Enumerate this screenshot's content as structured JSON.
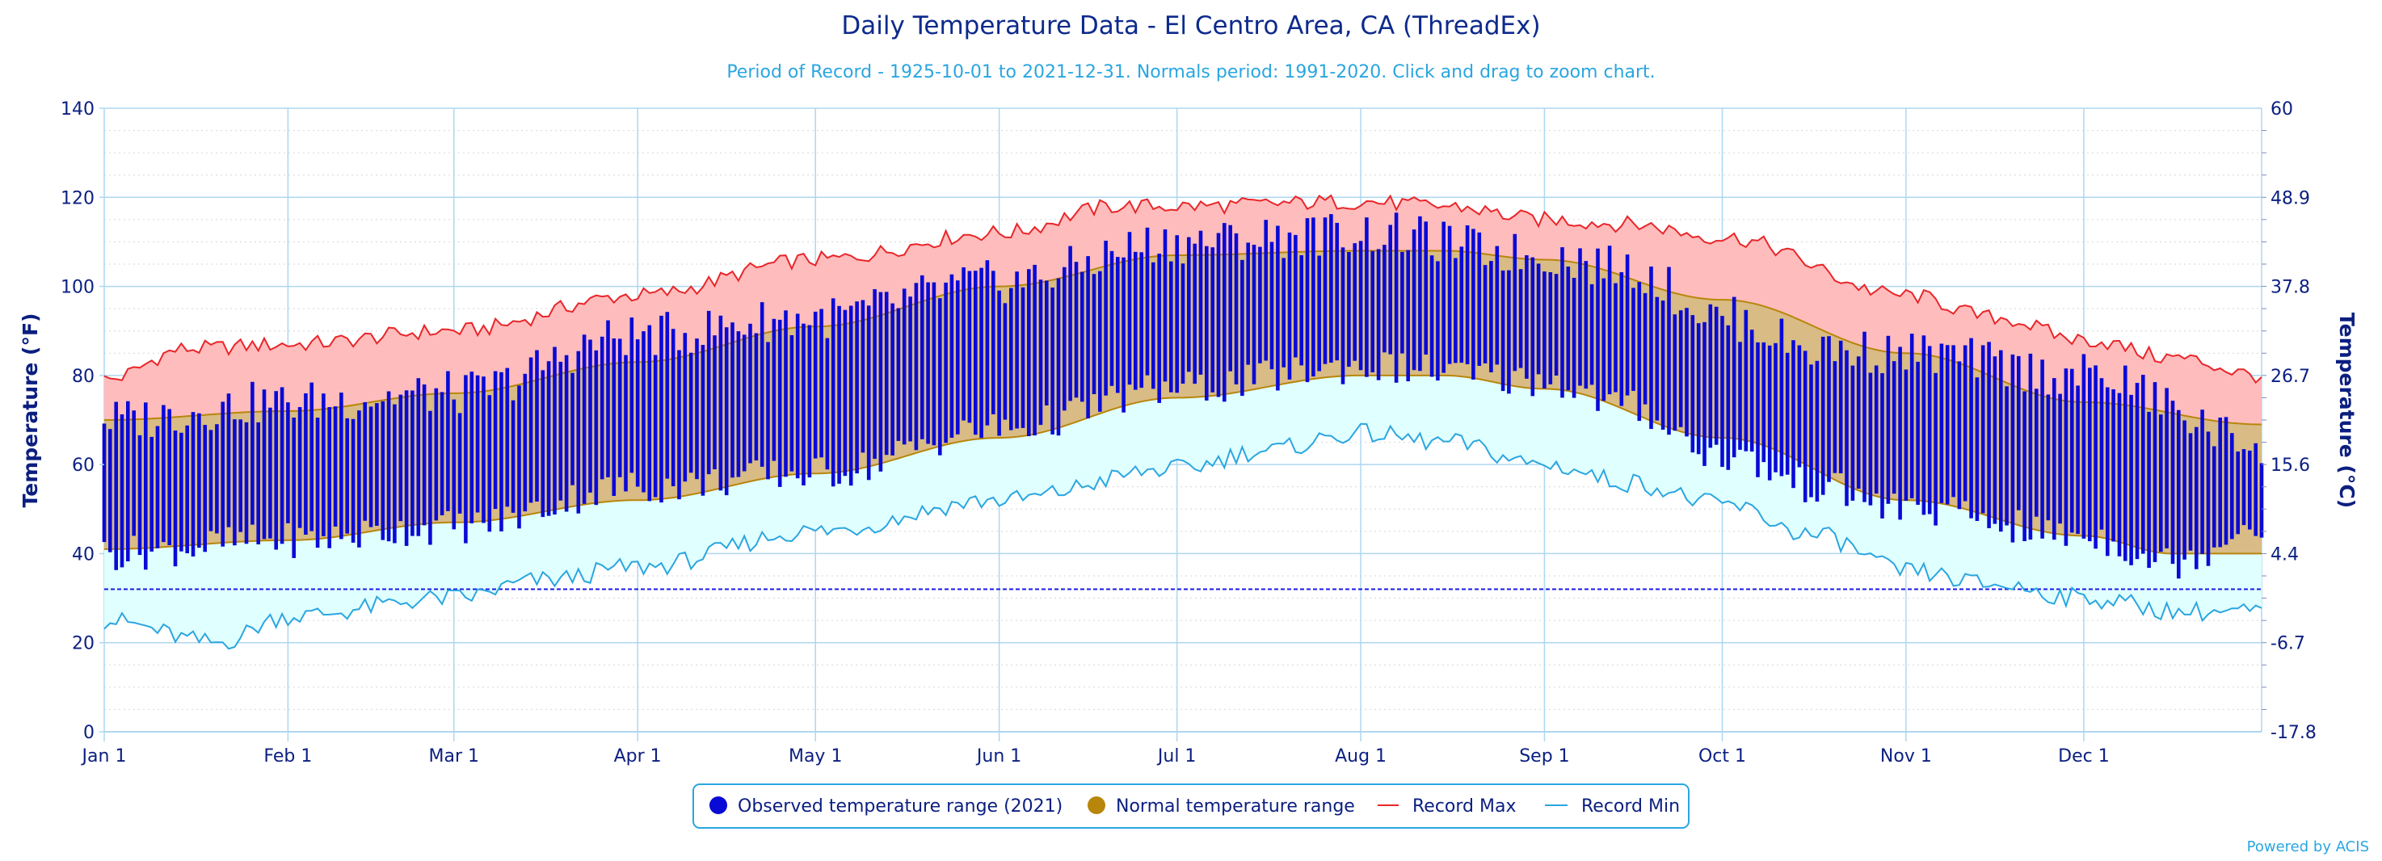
{
  "chart_data": {
    "type": "line",
    "title": "Daily Temperature Data - El Centro Area, CA (ThreadEx)",
    "subtitle": "Period of Record - 1925-10-01 to 2021-12-31. Normals period: 1991-2020. Click and drag to zoom chart.",
    "ylabel": "Temperature (°F)",
    "ylabel_right": "Temperature (°C)",
    "ylim": [
      0,
      140
    ],
    "yticks": [
      "0",
      "20",
      "40",
      "60",
      "80",
      "100",
      "120",
      "140"
    ],
    "yticks_right": [
      "-17.8",
      "-6.7",
      "4.4",
      "15.6",
      "26.7",
      "37.8",
      "48.9",
      "60"
    ],
    "xlim": [
      "2021-01-01",
      "2021-12-31"
    ],
    "months": [
      "Jan 1",
      "Feb 1",
      "Mar 1",
      "Apr 1",
      "May 1",
      "Jun 1",
      "Jul 1",
      "Aug 1",
      "Sep 1",
      "Oct 1",
      "Nov 1",
      "Dec 1"
    ],
    "freezing_line": 32,
    "grid": true,
    "legend_position": "bottom-center",
    "legend": [
      "Observed temperature range (2021)",
      "Normal temperature range",
      "Record Max",
      "Record Min"
    ],
    "colors": {
      "observed": "#0a0ad6",
      "normal_fill": "#d9bb85",
      "normal_line": "#b8860b",
      "record_max_line": "#e8262a",
      "record_max_fill": "#ffbcbc",
      "record_min_line": "#2aa6e0",
      "record_min_fill": "#e0ffff",
      "grid": "#aed7f0",
      "freezing": "#1a1ae6"
    },
    "record_max_anchors": [
      [
        1,
        79
      ],
      [
        15,
        86
      ],
      [
        32,
        87
      ],
      [
        60,
        90
      ],
      [
        91,
        98
      ],
      [
        121,
        106
      ],
      [
        152,
        112
      ],
      [
        172,
        118
      ],
      [
        182,
        118
      ],
      [
        213,
        119
      ],
      [
        227,
        118
      ],
      [
        244,
        115
      ],
      [
        258,
        114
      ],
      [
        274,
        111
      ],
      [
        305,
        98
      ],
      [
        320,
        93
      ],
      [
        335,
        88
      ],
      [
        350,
        84
      ],
      [
        365,
        80
      ]
    ],
    "record_min_anchors": [
      [
        1,
        25
      ],
      [
        20,
        20
      ],
      [
        32,
        26
      ],
      [
        60,
        30
      ],
      [
        75,
        34
      ],
      [
        91,
        37
      ],
      [
        121,
        45
      ],
      [
        152,
        52
      ],
      [
        182,
        59
      ],
      [
        196,
        63
      ],
      [
        213,
        67
      ],
      [
        227,
        65
      ],
      [
        244,
        60
      ],
      [
        258,
        56
      ],
      [
        274,
        51
      ],
      [
        290,
        44
      ],
      [
        305,
        36
      ],
      [
        320,
        33
      ],
      [
        335,
        30
      ],
      [
        352,
        27
      ],
      [
        365,
        27
      ]
    ],
    "normal_max_anchors": [
      [
        1,
        70
      ],
      [
        32,
        72
      ],
      [
        60,
        76
      ],
      [
        91,
        83
      ],
      [
        121,
        91
      ],
      [
        152,
        100
      ],
      [
        182,
        107
      ],
      [
        213,
        108
      ],
      [
        227,
        108
      ],
      [
        244,
        106
      ],
      [
        274,
        97
      ],
      [
        305,
        85
      ],
      [
        335,
        74
      ],
      [
        365,
        69
      ]
    ],
    "normal_min_anchors": [
      [
        1,
        41
      ],
      [
        32,
        43
      ],
      [
        60,
        47
      ],
      [
        91,
        52
      ],
      [
        121,
        58
      ],
      [
        152,
        66
      ],
      [
        182,
        75
      ],
      [
        213,
        80
      ],
      [
        227,
        80
      ],
      [
        244,
        77
      ],
      [
        274,
        66
      ],
      [
        305,
        52
      ],
      [
        335,
        44
      ],
      [
        350,
        40
      ],
      [
        365,
        40
      ]
    ],
    "observed_max_anchors": [
      [
        1,
        70
      ],
      [
        32,
        74
      ],
      [
        60,
        76
      ],
      [
        91,
        89
      ],
      [
        121,
        93
      ],
      [
        152,
        101
      ],
      [
        182,
        110
      ],
      [
        213,
        112
      ],
      [
        244,
        107
      ],
      [
        258,
        104
      ],
      [
        274,
        93
      ],
      [
        290,
        86
      ],
      [
        305,
        85
      ],
      [
        335,
        80
      ],
      [
        365,
        65
      ]
    ],
    "observed_min_anchors": [
      [
        1,
        40
      ],
      [
        32,
        43
      ],
      [
        60,
        46
      ],
      [
        91,
        55
      ],
      [
        121,
        58
      ],
      [
        152,
        68
      ],
      [
        182,
        77
      ],
      [
        213,
        82
      ],
      [
        244,
        79
      ],
      [
        258,
        73
      ],
      [
        274,
        62
      ],
      [
        290,
        55
      ],
      [
        305,
        50
      ],
      [
        335,
        44
      ],
      [
        350,
        38
      ],
      [
        365,
        47
      ]
    ]
  },
  "credit": "Powered by ACIS"
}
